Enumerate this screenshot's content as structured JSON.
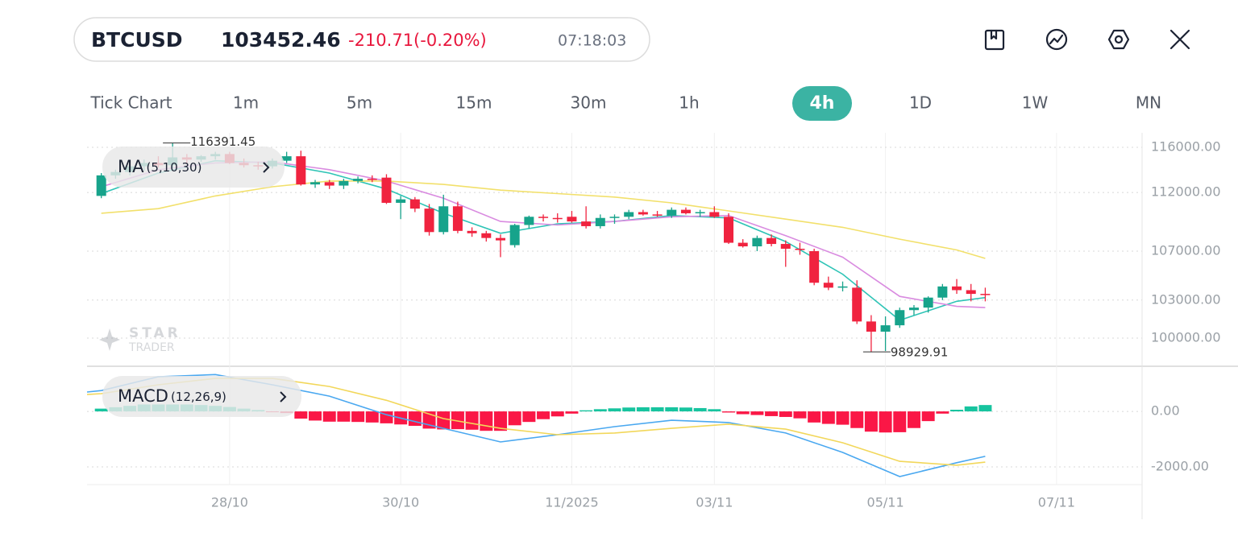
{
  "header": {
    "symbol": "BTCUSD",
    "change": "-210.71(-0.20%)",
    "time": "07:18:03"
  },
  "timeframes": {
    "items": [
      "Tick Chart",
      "1m",
      "5m",
      "15m",
      "30m",
      "1h",
      "4h",
      "1D",
      "1W",
      "MN"
    ],
    "selected": 6
  },
  "watermark": {
    "name": "STAR",
    "tagline": "TRADER"
  },
  "chart_data": [
    {
      "type": "candlestick",
      "label": "MA",
      "params": "(5,10,30)",
      "up_color": "#17a38b",
      "down_color": "#f0233f",
      "open": [
        111700,
        113500,
        113800,
        114300,
        114600,
        114400,
        115100,
        114900,
        115200,
        115400,
        114600,
        114400,
        114300,
        114800,
        115200,
        112700,
        112900,
        112600,
        113000,
        113200,
        113300,
        111100,
        111400,
        110600,
        108600,
        110800,
        108700,
        108500,
        108100,
        107500,
        109200,
        109900,
        109800,
        109900,
        109500,
        109100,
        109800,
        109900,
        110300,
        110100,
        110000,
        110500,
        110200,
        110300,
        109900,
        107700,
        107400,
        108100,
        107600,
        107200,
        107000,
        104400,
        104000,
        104000,
        101300,
        100500,
        101000,
        102200,
        102400,
        103200,
        104100,
        103800,
        103500
      ],
      "high": [
        113700,
        114000,
        114500,
        114900,
        115200,
        116391.45,
        115400,
        115300,
        115600,
        115600,
        115000,
        114700,
        115000,
        115600,
        115700,
        113100,
        113100,
        113200,
        113400,
        113500,
        113600,
        111700,
        111600,
        111000,
        111800,
        111200,
        109000,
        108700,
        108400,
        109300,
        110000,
        110100,
        110200,
        110400,
        110800,
        110100,
        110100,
        110500,
        110500,
        110400,
        110700,
        110700,
        110500,
        110800,
        110200,
        108000,
        108300,
        108400,
        107900,
        107700,
        107200,
        104900,
        104500,
        104600,
        101800,
        101700,
        102400,
        102600,
        103300,
        104300,
        104700,
        104300,
        104000
      ],
      "low": [
        111500,
        113200,
        113500,
        113900,
        114200,
        114100,
        114500,
        114700,
        114900,
        114500,
        114200,
        114000,
        114100,
        114600,
        112600,
        112400,
        112300,
        112300,
        112800,
        112900,
        111000,
        109700,
        110300,
        108300,
        108400,
        108500,
        108200,
        107800,
        106500,
        107300,
        108900,
        109500,
        109400,
        109400,
        108900,
        108900,
        109300,
        109700,
        110000,
        109900,
        109800,
        110100,
        109900,
        109800,
        107600,
        107300,
        107000,
        107400,
        105700,
        106700,
        104200,
        103800,
        103700,
        101100,
        98929.91,
        99000,
        100800,
        101800,
        102000,
        103000,
        103500,
        102900,
        102900
      ],
      "close": [
        113500,
        113800,
        114300,
        114600,
        114400,
        115100,
        114900,
        115200,
        115400,
        114600,
        114400,
        114300,
        114800,
        115200,
        112700,
        112900,
        112600,
        113000,
        113200,
        113100,
        111100,
        111400,
        110600,
        108600,
        110800,
        108700,
        108500,
        108100,
        107900,
        109200,
        109900,
        109800,
        109700,
        109500,
        109100,
        109800,
        109900,
        110300,
        110100,
        110000,
        110500,
        110200,
        110300,
        109900,
        107700,
        107400,
        108100,
        107600,
        107200,
        107100,
        104400,
        104000,
        104100,
        101300,
        100500,
        101000,
        102200,
        102400,
        103200,
        104100,
        103800,
        103500,
        103452.46
      ],
      "series": [
        {
          "color": "#2ec4b6",
          "x": [
            0,
            4,
            8,
            12,
            16,
            20,
            24,
            28,
            32,
            36,
            40,
            44,
            48,
            52,
            56,
            60,
            62
          ],
          "values": [
            111900,
            113700,
            114800,
            114600,
            113700,
            112300,
            110200,
            108500,
            109300,
            109500,
            110000,
            109800,
            107800,
            105100,
            101400,
            102900,
            103200
          ]
        },
        {
          "color": "#d98be0",
          "x": [
            0,
            4,
            8,
            12,
            16,
            20,
            24,
            28,
            32,
            36,
            40,
            44,
            48,
            52,
            56,
            60,
            62
          ],
          "values": [
            112500,
            114000,
            114600,
            114700,
            114000,
            113000,
            111500,
            109500,
            109200,
            109500,
            109900,
            110000,
            108300,
            106500,
            103300,
            102500,
            102400
          ]
        },
        {
          "color": "#f2e06b",
          "x": [
            0,
            4,
            8,
            12,
            16,
            20,
            24,
            28,
            32,
            36,
            40,
            44,
            48,
            52,
            56,
            60,
            62
          ],
          "values": [
            110200,
            110600,
            111700,
            112500,
            113000,
            113000,
            112700,
            112200,
            111900,
            111600,
            111100,
            110400,
            109700,
            109000,
            108000,
            107100,
            106400
          ]
        }
      ],
      "xlim": [
        -1,
        73
      ],
      "ylim": [
        97830,
        117320
      ],
      "log": true,
      "yticks": [
        {
          "value": 116000,
          "label": "116000.00"
        },
        {
          "value": 112000,
          "label": "112000.00"
        },
        {
          "value": 107000,
          "label": "107000.00"
        },
        {
          "value": 103000,
          "label": "103000.00"
        },
        {
          "value": 100000,
          "label": "100000.00"
        }
      ],
      "grid": true
    },
    {
      "type": "bar",
      "label": "MACD",
      "params": "(12,26,9)",
      "up_color": "#17c49f",
      "down_color": "#fa1746",
      "values": [
        100,
        150,
        200,
        250,
        250,
        250,
        250,
        230,
        200,
        160,
        100,
        50,
        -30,
        -60,
        -260,
        -330,
        -370,
        -370,
        -380,
        -400,
        -430,
        -470,
        -520,
        -620,
        -650,
        -640,
        -660,
        -700,
        -700,
        -500,
        -380,
        -280,
        -180,
        -80,
        40,
        80,
        110,
        140,
        150,
        150,
        150,
        140,
        120,
        80,
        -40,
        -100,
        -130,
        -170,
        -200,
        -250,
        -400,
        -450,
        -480,
        -600,
        -730,
        -760,
        -750,
        -600,
        -350,
        -80,
        60,
        180,
        230
      ],
      "series": [
        {
          "color": "#4aa8f0",
          "x": [
            -1,
            0,
            4,
            8,
            12,
            16,
            20,
            24,
            28,
            32,
            36,
            40,
            44,
            48,
            52,
            56,
            60,
            62
          ],
          "values": [
            700,
            750,
            1250,
            1330,
            960,
            550,
            -120,
            -610,
            -1100,
            -840,
            -550,
            -320,
            -400,
            -780,
            -1480,
            -2350,
            -1850,
            -1620
          ]
        },
        {
          "color": "#f2d75a",
          "x": [
            -1,
            0,
            4,
            8,
            12,
            16,
            20,
            24,
            28,
            32,
            36,
            40,
            44,
            48,
            52,
            56,
            60,
            62
          ],
          "values": [
            610,
            640,
            960,
            1190,
            1190,
            900,
            400,
            -260,
            -610,
            -840,
            -780,
            -610,
            -460,
            -640,
            -1130,
            -1800,
            -1940,
            -1830
          ]
        }
      ],
      "xlim": [
        -1,
        73
      ],
      "ylim": [
        -2640,
        1570
      ],
      "yticks": [
        {
          "value": 0,
          "label": "0.00"
        },
        {
          "value": -2000,
          "label": "-2000.00"
        }
      ],
      "xticks": [
        {
          "value": 9,
          "label": "28/10"
        },
        {
          "value": 21,
          "label": "30/10"
        },
        {
          "value": 33,
          "label": "11/2025"
        },
        {
          "value": 43,
          "label": "03/11"
        },
        {
          "value": 55,
          "label": "05/11"
        },
        {
          "value": 67,
          "label": "07/11"
        }
      ],
      "grid": true
    }
  ]
}
